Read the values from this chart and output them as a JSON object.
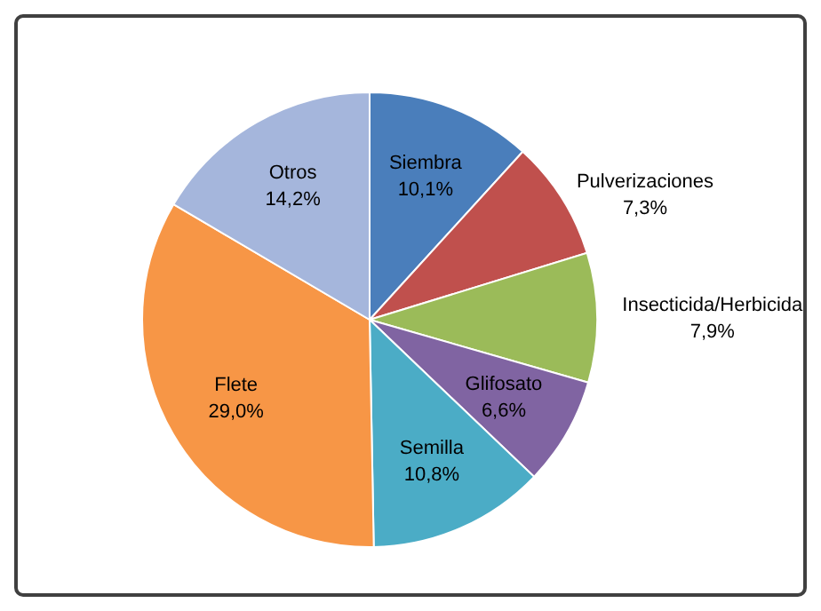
{
  "chart_data": {
    "type": "pie",
    "categories": [
      "Siembra",
      "Pulverizaciones",
      "Insecticida/Herbicida",
      "Glifosato",
      "Semilla",
      "Flete",
      "Otros"
    ],
    "values": [
      10.1,
      7.3,
      7.9,
      6.6,
      10.8,
      29.0,
      14.2
    ],
    "value_labels": [
      "10,1%",
      "7,3%",
      "7,9%",
      "6,6%",
      "10,8%",
      "29,0%",
      "14,2%"
    ],
    "colors": [
      "#4a7ebb",
      "#c0504d",
      "#9bbb59",
      "#8064a2",
      "#4bacc6",
      "#f79646",
      "#a5b6dc"
    ],
    "legend": false
  }
}
